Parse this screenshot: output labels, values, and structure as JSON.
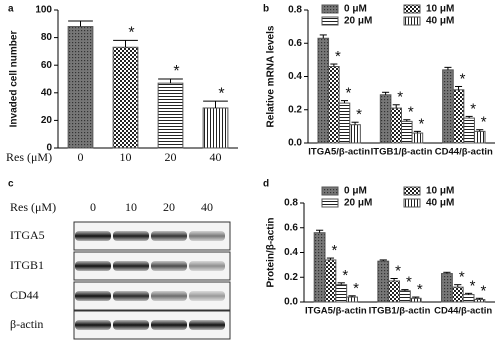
{
  "chart_data": [
    {
      "type": "bar",
      "panel": "a",
      "y_label": "Invaded cell number",
      "x_label": "Res (μM)",
      "categories": [
        0,
        10,
        20,
        40
      ],
      "values": [
        88,
        73,
        47,
        29
      ],
      "errors": [
        4,
        5,
        3,
        5
      ],
      "annotations": [
        null,
        "*",
        "*",
        "*"
      ],
      "color": "#555555",
      "patterns": [
        "dots",
        "checker",
        "hlines",
        "vlines"
      ],
      "ylim": [
        0,
        100
      ],
      "yticks": [
        0,
        20,
        40,
        60,
        80,
        100
      ]
    },
    {
      "type": "grouped-bar",
      "panel": "b",
      "y_label": "Relative mRNA levels",
      "categories": [
        "ITGA5/β-actin",
        "ITGB1/β-actin",
        "CD44/β-actin"
      ],
      "series": [
        {
          "name": "0 μM",
          "color": "#555555",
          "pattern": "dots",
          "values": [
            0.63,
            0.29,
            0.44
          ],
          "errors": [
            0.02,
            0.015,
            0.015
          ]
        },
        {
          "name": "10 μM",
          "color": "#555555",
          "pattern": "checker",
          "values": [
            0.46,
            0.21,
            0.32
          ],
          "errors": [
            0.015,
            0.02,
            0.02
          ],
          "annotation": "*"
        },
        {
          "name": "20 μM",
          "color": "#555555",
          "pattern": "hlines",
          "values": [
            0.24,
            0.13,
            0.15
          ],
          "errors": [
            0.015,
            0.01,
            0.01
          ],
          "annotation": "*"
        },
        {
          "name": "40 μM",
          "color": "#555555",
          "pattern": "vlines",
          "values": [
            0.11,
            0.06,
            0.07
          ],
          "errors": [
            0.015,
            0.01,
            0.01
          ],
          "annotation": "*"
        }
      ],
      "ylim": [
        0,
        0.8
      ],
      "yticks": [
        {
          "value": 0,
          "label": "0.0"
        },
        0.2,
        0.4,
        0.6,
        0.8
      ]
    },
    {
      "type": "grouped-bar",
      "panel": "d",
      "y_label": "Protein/β-actin",
      "categories": [
        "ITGA5/β-actin",
        "ITGB1/β-actin",
        "CD44/β-actin"
      ],
      "series": [
        {
          "name": "0 μM",
          "color": "#555555",
          "pattern": "dots",
          "values": [
            0.56,
            0.33,
            0.23
          ],
          "errors": [
            0.02,
            0.01,
            0.01
          ]
        },
        {
          "name": "10 μM",
          "color": "#555555",
          "pattern": "checker",
          "values": [
            0.34,
            0.17,
            0.12
          ],
          "errors": [
            0.015,
            0.02,
            0.02
          ],
          "annotation": "*"
        },
        {
          "name": "20 μM",
          "color": "#555555",
          "pattern": "hlines",
          "values": [
            0.14,
            0.09,
            0.06
          ],
          "errors": [
            0.015,
            0.01,
            0.01
          ],
          "annotation": "*"
        },
        {
          "name": "40 μM",
          "color": "#555555",
          "pattern": "vlines",
          "values": [
            0.04,
            0.03,
            0.02
          ],
          "errors": [
            0.01,
            0.01,
            0.01
          ],
          "annotation": "*"
        }
      ],
      "ylim": [
        0,
        0.8
      ],
      "yticks": [
        {
          "value": 0,
          "label": "0.0"
        },
        0.2,
        0.4,
        0.6,
        0.8
      ]
    }
  ],
  "blot": {
    "panel": "c",
    "x_label": "Res (μM)",
    "lanes": [
      0,
      10,
      20,
      40
    ],
    "rows": [
      "ITGA5",
      "ITGB1",
      "CD44",
      "β-actin"
    ]
  }
}
